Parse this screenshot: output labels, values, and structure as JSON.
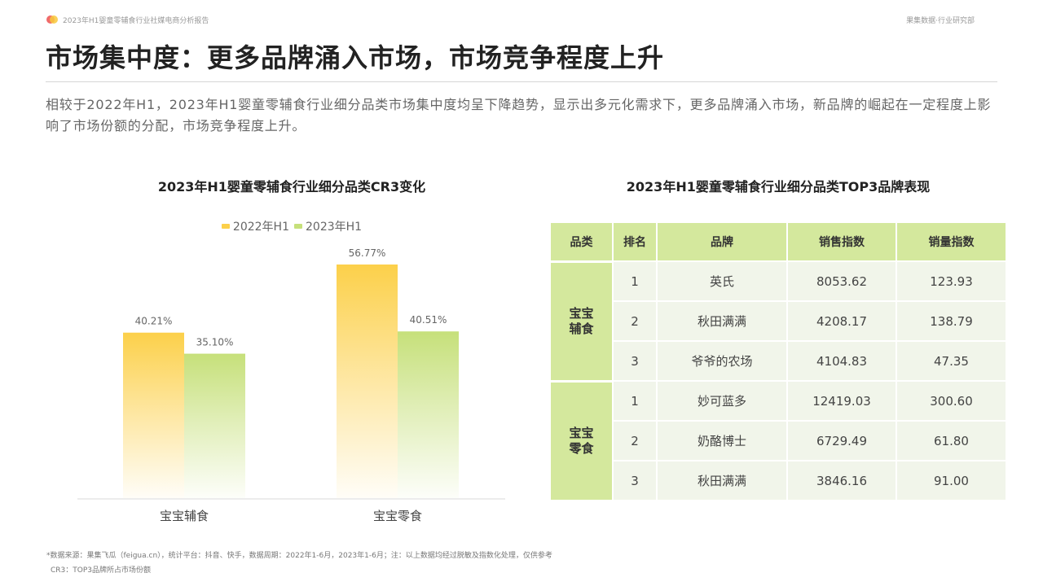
{
  "header": {
    "report_name": "2023年H1婴童零辅食行业社媒电商分析报告",
    "brand": "果集数据·行业研究部"
  },
  "title": "市场集中度：更多品牌涌入市场，市场竞争程度上升",
  "intro": "相较于2022年H1，2023年H1婴童零辅食行业细分品类市场集中度均呈下降趋势，显示出多元化需求下，更多品牌涌入市场，新品牌的崛起在一定程度上影响了市场份额的分配，市场竞争程度上升。",
  "colors": {
    "series_2022": "#fcd04a",
    "series_2023": "#c6e07a",
    "table_header": "#d4e89d",
    "table_cell": "#f1f5ea",
    "logo_red": "#f06a6a",
    "logo_yellow": "#f8c93c"
  },
  "chart_data": {
    "type": "bar",
    "title": "2023年H1婴童零辅食行业细分品类CR3变化",
    "categories": [
      "宝宝辅食",
      "宝宝零食"
    ],
    "series": [
      {
        "name": "2022年H1",
        "values": [
          40.21,
          56.77
        ],
        "labels": [
          "40.21%",
          "56.77%"
        ]
      },
      {
        "name": "2023年H1",
        "values": [
          35.1,
          40.51
        ],
        "labels": [
          "35.10%",
          "40.51%"
        ]
      }
    ],
    "ylim": [
      0,
      70
    ],
    "grid": false,
    "legend_position": "top"
  },
  "table": {
    "title": "2023年H1婴童零辅食行业细分品类TOP3品牌表现",
    "headers": [
      "品类",
      "排名",
      "品牌",
      "销售指数",
      "销量指数"
    ],
    "groups": [
      {
        "category": "宝宝辅食",
        "rows": [
          {
            "rank": "1",
            "brand": "英氏",
            "sales_index": "8053.62",
            "volume_index": "123.93"
          },
          {
            "rank": "2",
            "brand": "秋田满满",
            "sales_index": "4208.17",
            "volume_index": "138.79"
          },
          {
            "rank": "3",
            "brand": "爷爷的农场",
            "sales_index": "4104.83",
            "volume_index": "47.35"
          }
        ]
      },
      {
        "category": "宝宝零食",
        "rows": [
          {
            "rank": "1",
            "brand": "妙可蓝多",
            "sales_index": "12419.03",
            "volume_index": "300.60"
          },
          {
            "rank": "2",
            "brand": "奶酪博士",
            "sales_index": "6729.49",
            "volume_index": "61.80"
          },
          {
            "rank": "3",
            "brand": "秋田满满",
            "sales_index": "3846.16",
            "volume_index": "91.00"
          }
        ]
      }
    ]
  },
  "footnotes": {
    "source": "*数据来源：果集飞瓜（feigua.cn），统计平台：抖音、快手，数据周期：2022年1-6月，2023年1-6月；注：以上数据均经过脱敏及指数化处理，仅供参考",
    "cr3": "CR3：TOP3品牌所占市场份额"
  }
}
